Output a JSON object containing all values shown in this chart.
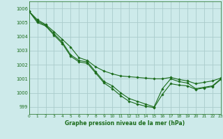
{
  "xlabel": "Graphe pression niveau de la mer (hPa)",
  "bg_color": "#cdeaea",
  "grid_color": "#aacccc",
  "line_color": "#1a6b1a",
  "marker_color": "#1a6b1a",
  "ylim": [
    998.5,
    1006.5
  ],
  "xlim": [
    0,
    23
  ],
  "yticks": [
    999,
    1000,
    1001,
    1002,
    1003,
    1004,
    1005,
    1006
  ],
  "xticks": [
    0,
    1,
    2,
    3,
    4,
    5,
    6,
    7,
    8,
    9,
    10,
    11,
    12,
    13,
    14,
    15,
    16,
    17,
    18,
    19,
    20,
    21,
    22,
    23
  ],
  "series": [
    [
      1005.8,
      1005.1,
      1004.8,
      1004.2,
      1003.6,
      1002.7,
      1002.3,
      1002.2,
      1001.5,
      1000.8,
      1000.5,
      1000.0,
      999.6,
      999.4,
      999.2,
      999.0,
      1000.3,
      1001.0,
      1000.8,
      1000.7,
      1000.3,
      1000.4,
      1000.5,
      1001.0
    ],
    [
      1005.8,
      1005.0,
      1004.75,
      1004.1,
      1003.5,
      1002.6,
      1002.2,
      1002.1,
      1001.4,
      1000.7,
      1000.3,
      999.8,
      999.4,
      999.2,
      999.05,
      998.95,
      999.9,
      1000.65,
      1000.55,
      1000.5,
      1000.25,
      1000.35,
      1000.45,
      1000.95
    ],
    [
      1005.8,
      1005.2,
      1004.85,
      1004.35,
      1003.8,
      1003.25,
      1002.5,
      1002.3,
      1001.85,
      1001.55,
      1001.35,
      1001.2,
      1001.15,
      1001.1,
      1001.05,
      1001.0,
      1001.0,
      1001.1,
      1000.95,
      1000.85,
      1000.65,
      1000.75,
      1000.85,
      1001.05
    ]
  ]
}
